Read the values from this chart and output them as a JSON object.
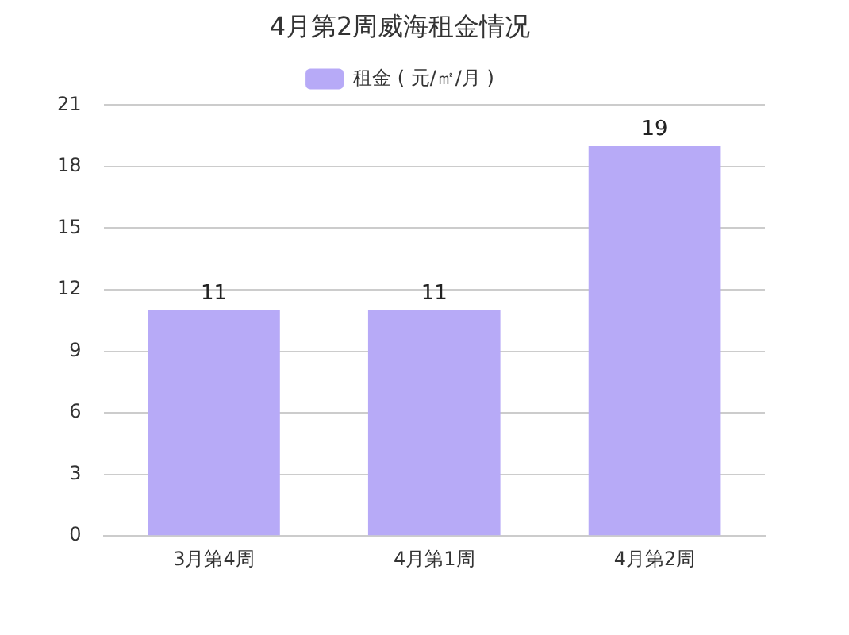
{
  "chart_data": {
    "type": "bar",
    "title": "4月第2周威海租金情况",
    "categories": [
      "3月第4周",
      "4月第1周",
      "4月第2周"
    ],
    "series": [
      {
        "name": "租金 ( 元/㎡/月 )",
        "color": "#b7aaf7",
        "values": [
          11,
          11,
          19
        ]
      }
    ],
    "ylim": [
      0,
      21
    ],
    "yticks": [
      0,
      3,
      6,
      9,
      12,
      15,
      18,
      21
    ],
    "grid": "y",
    "legend": "top",
    "data_labels": true
  }
}
